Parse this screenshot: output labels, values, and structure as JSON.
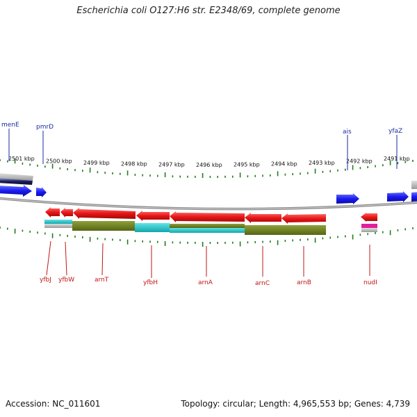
{
  "title": "Escherichia coli O127:H6 str. E2348/69, complete genome",
  "footer": {
    "accession": "Accession: NC_011601",
    "summary": "Topology: circular; Length: 4,965,553 bp; Genes: 4,739"
  },
  "scale_labels": [
    "2501 kbp",
    "2500 kbp",
    "2499 kbp",
    "2498 kbp",
    "2497 kbp",
    "2496 kbp",
    "2495 kbp",
    "2494 kbp",
    "2493 kbp",
    "2492 kbp",
    "2491 kbp"
  ],
  "top_gene_labels": [
    "menE",
    "pmrD",
    "ais",
    "yfaZ"
  ],
  "bottom_gene_labels": [
    "yfbJ",
    "yfbW",
    "arnT",
    "yfbH",
    "arnA",
    "arnC",
    "arnB",
    "nudI"
  ],
  "colors": {
    "forward_strand": "#1a1af0",
    "reverse_strand": "#e81616",
    "tick": "#1d7d1d",
    "backbone": "#8a8a8a",
    "cyan_feature": "#22c8cc",
    "olive_feature": "#6b7f1c",
    "magenta_feature": "#e0209a"
  }
}
